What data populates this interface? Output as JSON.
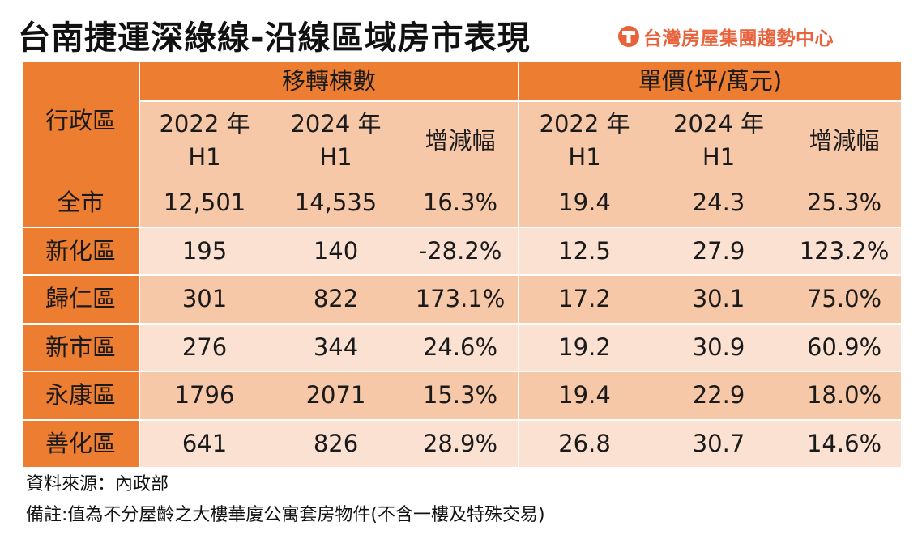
{
  "header": {
    "title": "台南捷運深綠線-沿線區域房市表現",
    "brand": "台灣房屋集團趨勢中心",
    "brand_icon": "t-logo-icon",
    "brand_color": "#e8623c"
  },
  "table": {
    "group_transfers": "移轉棟數",
    "group_price": "單價(坪/萬元)",
    "district_header": "行政區",
    "col_2022": "2022 年",
    "col_2024": "2024 年",
    "col_h1": "H1",
    "col_change": "增減幅",
    "rows": [
      {
        "district": "全市",
        "t2022": "12,501",
        "t2024": "14,535",
        "tchg": "16.3%",
        "p2022": "19.4",
        "p2024": "24.3",
        "pchg": "25.3%"
      },
      {
        "district": "新化區",
        "t2022": "195",
        "t2024": "140",
        "tchg": "-28.2%",
        "p2022": "12.5",
        "p2024": "27.9",
        "pchg": "123.2%"
      },
      {
        "district": "歸仁區",
        "t2022": "301",
        "t2024": "822",
        "tchg": "173.1%",
        "p2022": "17.2",
        "p2024": "30.1",
        "pchg": "75.0%"
      },
      {
        "district": "新市區",
        "t2022": "276",
        "t2024": "344",
        "tchg": "24.6%",
        "p2022": "19.2",
        "p2024": "30.9",
        "pchg": "60.9%"
      },
      {
        "district": "永康區",
        "t2022": "1796",
        "t2024": "2071",
        "tchg": "15.3%",
        "p2022": "19.4",
        "p2024": "22.9",
        "pchg": "18.0%"
      },
      {
        "district": "善化區",
        "t2022": "641",
        "t2024": "826",
        "tchg": "28.9%",
        "p2022": "26.8",
        "p2024": "30.7",
        "pchg": "14.6%"
      }
    ],
    "colors": {
      "orange": "#ec7d31",
      "peach": "#f6c8a8",
      "light": "#fbe1d2"
    }
  },
  "notes": {
    "source": "資料來源：內政部",
    "remark": "備註:值為不分屋齡之大樓華廈公寓套房物件(不含一樓及特殊交易)"
  }
}
